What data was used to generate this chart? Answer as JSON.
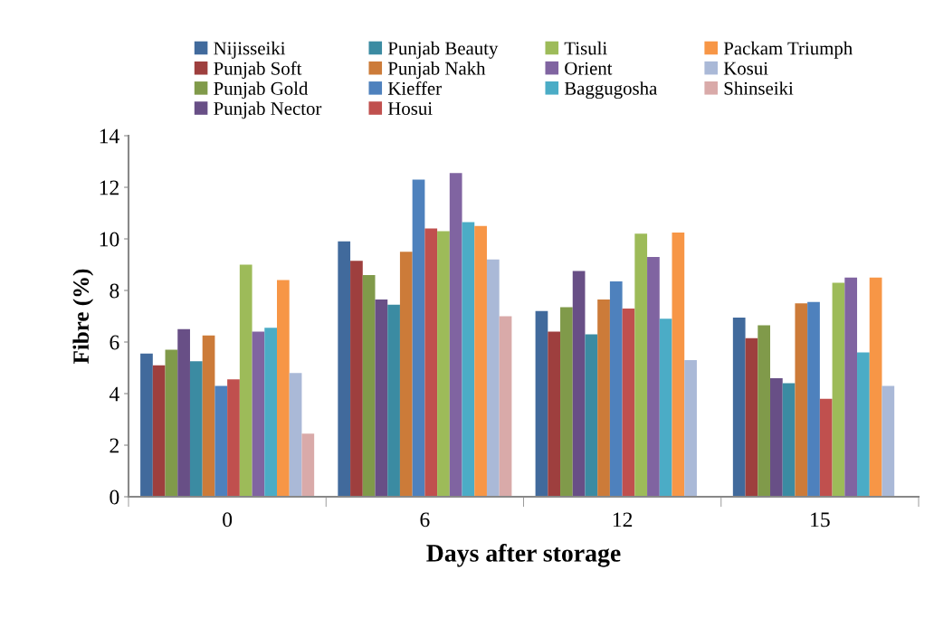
{
  "chart_data": {
    "type": "bar",
    "xlabel": "Days after storage",
    "ylabel": "Fibre (%)",
    "categories": [
      "0",
      "6",
      "12",
      "15"
    ],
    "ylim": [
      0,
      14
    ],
    "yticks": [
      0,
      2,
      4,
      6,
      8,
      10,
      12,
      14
    ],
    "grid": false,
    "legend": "top",
    "series": [
      {
        "name": "Nijisseiki",
        "color": "#416a9c",
        "values": [
          5.55,
          9.9,
          7.2,
          6.95
        ]
      },
      {
        "name": "Punjab Soft",
        "color": "#9e3f3e",
        "values": [
          5.1,
          9.15,
          6.4,
          6.15
        ]
      },
      {
        "name": "Punjab Gold",
        "color": "#809a4a",
        "values": [
          5.7,
          8.6,
          7.35,
          6.65
        ]
      },
      {
        "name": "Punjab Nector",
        "color": "#684f86",
        "values": [
          6.5,
          7.65,
          8.75,
          4.6
        ]
      },
      {
        "name": "Punjab Beauty",
        "color": "#3b8ba2",
        "values": [
          5.25,
          7.45,
          6.3,
          4.4
        ]
      },
      {
        "name": "Punjab Nakh",
        "color": "#cc7b39",
        "values": [
          6.25,
          9.5,
          7.65,
          7.5
        ]
      },
      {
        "name": "Kieffer",
        "color": "#4e81bd",
        "values": [
          4.3,
          12.3,
          8.35,
          7.55
        ]
      },
      {
        "name": "Hosui",
        "color": "#c0504e",
        "values": [
          4.55,
          10.4,
          7.3,
          3.8
        ]
      },
      {
        "name": "Tisuli",
        "color": "#9dbb59",
        "values": [
          9.0,
          10.3,
          10.2,
          8.3
        ]
      },
      {
        "name": "Orient",
        "color": "#8064a1",
        "values": [
          6.4,
          12.55,
          9.3,
          8.5
        ]
      },
      {
        "name": "Baggugosha",
        "color": "#4bacc6",
        "values": [
          6.55,
          10.65,
          6.9,
          5.6
        ]
      },
      {
        "name": "Packam Triumph",
        "color": "#f79646",
        "values": [
          8.4,
          10.5,
          10.25,
          8.5
        ]
      },
      {
        "name": "Kosui",
        "color": "#aab9d7",
        "values": [
          4.8,
          9.2,
          5.3,
          4.3
        ]
      },
      {
        "name": "Shinseiki",
        "color": "#d9aaa9",
        "values": [
          2.45,
          7.0,
          null,
          null
        ]
      }
    ]
  }
}
